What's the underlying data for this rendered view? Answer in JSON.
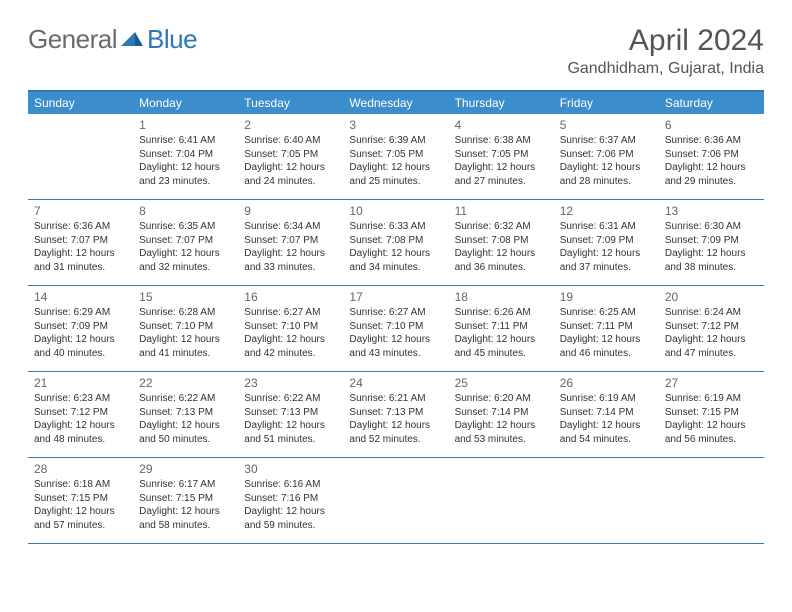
{
  "logo": {
    "text1": "General",
    "text2": "Blue"
  },
  "title": "April 2024",
  "location": "Gandhidham, Gujarat, India",
  "colors": {
    "header_bg": "#3c8dcc",
    "header_border": "#2f77bb",
    "row_border": "#2f77bb",
    "logo_gray": "#6b6b6b",
    "logo_blue": "#2f77bb"
  },
  "weekdays": [
    "Sunday",
    "Monday",
    "Tuesday",
    "Wednesday",
    "Thursday",
    "Friday",
    "Saturday"
  ],
  "first_weekday_index": 1,
  "days": [
    {
      "n": 1,
      "sunrise": "6:41 AM",
      "sunset": "7:04 PM",
      "daylight": "12 hours and 23 minutes."
    },
    {
      "n": 2,
      "sunrise": "6:40 AM",
      "sunset": "7:05 PM",
      "daylight": "12 hours and 24 minutes."
    },
    {
      "n": 3,
      "sunrise": "6:39 AM",
      "sunset": "7:05 PM",
      "daylight": "12 hours and 25 minutes."
    },
    {
      "n": 4,
      "sunrise": "6:38 AM",
      "sunset": "7:05 PM",
      "daylight": "12 hours and 27 minutes."
    },
    {
      "n": 5,
      "sunrise": "6:37 AM",
      "sunset": "7:06 PM",
      "daylight": "12 hours and 28 minutes."
    },
    {
      "n": 6,
      "sunrise": "6:36 AM",
      "sunset": "7:06 PM",
      "daylight": "12 hours and 29 minutes."
    },
    {
      "n": 7,
      "sunrise": "6:36 AM",
      "sunset": "7:07 PM",
      "daylight": "12 hours and 31 minutes."
    },
    {
      "n": 8,
      "sunrise": "6:35 AM",
      "sunset": "7:07 PM",
      "daylight": "12 hours and 32 minutes."
    },
    {
      "n": 9,
      "sunrise": "6:34 AM",
      "sunset": "7:07 PM",
      "daylight": "12 hours and 33 minutes."
    },
    {
      "n": 10,
      "sunrise": "6:33 AM",
      "sunset": "7:08 PM",
      "daylight": "12 hours and 34 minutes."
    },
    {
      "n": 11,
      "sunrise": "6:32 AM",
      "sunset": "7:08 PM",
      "daylight": "12 hours and 36 minutes."
    },
    {
      "n": 12,
      "sunrise": "6:31 AM",
      "sunset": "7:09 PM",
      "daylight": "12 hours and 37 minutes."
    },
    {
      "n": 13,
      "sunrise": "6:30 AM",
      "sunset": "7:09 PM",
      "daylight": "12 hours and 38 minutes."
    },
    {
      "n": 14,
      "sunrise": "6:29 AM",
      "sunset": "7:09 PM",
      "daylight": "12 hours and 40 minutes."
    },
    {
      "n": 15,
      "sunrise": "6:28 AM",
      "sunset": "7:10 PM",
      "daylight": "12 hours and 41 minutes."
    },
    {
      "n": 16,
      "sunrise": "6:27 AM",
      "sunset": "7:10 PM",
      "daylight": "12 hours and 42 minutes."
    },
    {
      "n": 17,
      "sunrise": "6:27 AM",
      "sunset": "7:10 PM",
      "daylight": "12 hours and 43 minutes."
    },
    {
      "n": 18,
      "sunrise": "6:26 AM",
      "sunset": "7:11 PM",
      "daylight": "12 hours and 45 minutes."
    },
    {
      "n": 19,
      "sunrise": "6:25 AM",
      "sunset": "7:11 PM",
      "daylight": "12 hours and 46 minutes."
    },
    {
      "n": 20,
      "sunrise": "6:24 AM",
      "sunset": "7:12 PM",
      "daylight": "12 hours and 47 minutes."
    },
    {
      "n": 21,
      "sunrise": "6:23 AM",
      "sunset": "7:12 PM",
      "daylight": "12 hours and 48 minutes."
    },
    {
      "n": 22,
      "sunrise": "6:22 AM",
      "sunset": "7:13 PM",
      "daylight": "12 hours and 50 minutes."
    },
    {
      "n": 23,
      "sunrise": "6:22 AM",
      "sunset": "7:13 PM",
      "daylight": "12 hours and 51 minutes."
    },
    {
      "n": 24,
      "sunrise": "6:21 AM",
      "sunset": "7:13 PM",
      "daylight": "12 hours and 52 minutes."
    },
    {
      "n": 25,
      "sunrise": "6:20 AM",
      "sunset": "7:14 PM",
      "daylight": "12 hours and 53 minutes."
    },
    {
      "n": 26,
      "sunrise": "6:19 AM",
      "sunset": "7:14 PM",
      "daylight": "12 hours and 54 minutes."
    },
    {
      "n": 27,
      "sunrise": "6:19 AM",
      "sunset": "7:15 PM",
      "daylight": "12 hours and 56 minutes."
    },
    {
      "n": 28,
      "sunrise": "6:18 AM",
      "sunset": "7:15 PM",
      "daylight": "12 hours and 57 minutes."
    },
    {
      "n": 29,
      "sunrise": "6:17 AM",
      "sunset": "7:15 PM",
      "daylight": "12 hours and 58 minutes."
    },
    {
      "n": 30,
      "sunrise": "6:16 AM",
      "sunset": "7:16 PM",
      "daylight": "12 hours and 59 minutes."
    }
  ],
  "labels": {
    "sunrise": "Sunrise:",
    "sunset": "Sunset:",
    "daylight": "Daylight:"
  }
}
